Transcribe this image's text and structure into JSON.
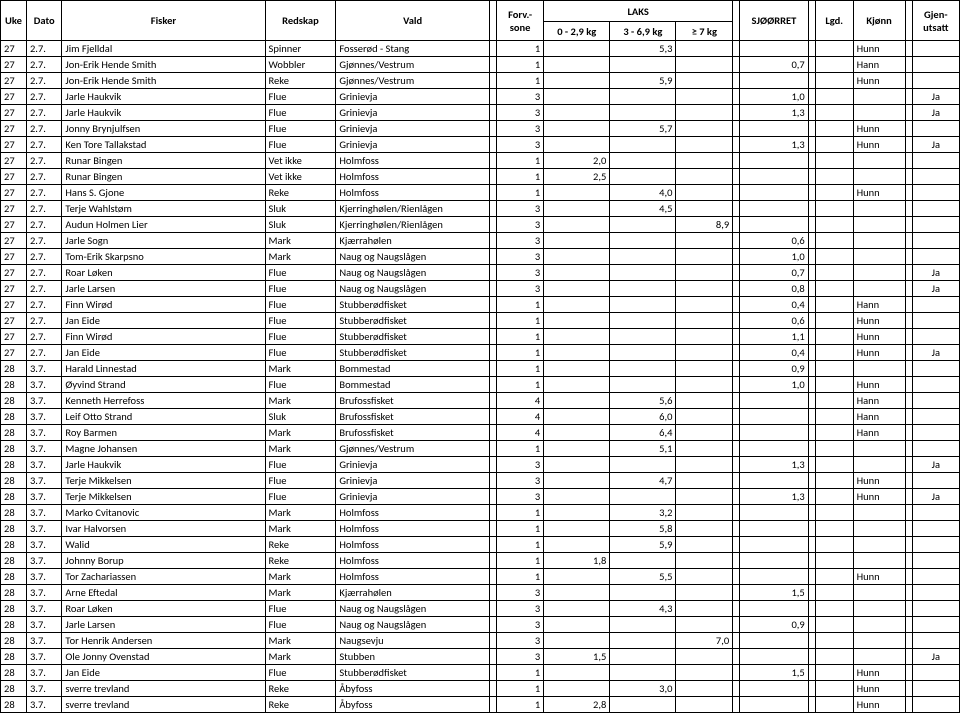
{
  "headers": {
    "uke": "Uke",
    "dato": "Dato",
    "fisker": "Fisker",
    "redskap": "Redskap",
    "vald": "Vald",
    "forv": "Forv.-\nsone",
    "forv_line1": "Forv.-",
    "forv_line2": "sone",
    "laks": "LAKS",
    "w1": "0 - 2,9 kg",
    "w2": "3 - 6,9 kg",
    "w3": "≥ 7 kg",
    "sjorret": "SJØØRRET",
    "lgd": "Lgd.",
    "kjonn": "Kjønn",
    "gjen": "Gjen-\nutsatt",
    "gjen_line1": "Gjen-",
    "gjen_line2": "utsatt"
  },
  "rows": [
    {
      "uke": "27",
      "dato": "2.7.",
      "fisker": "Jim Fjelldal",
      "redskap": "Spinner",
      "vald": "Fosserød - Stang",
      "forv": "1",
      "w1": "",
      "w2": "5,3",
      "w3": "",
      "sj": "",
      "lgd": "",
      "kjonn": "Hunn",
      "gj": ""
    },
    {
      "uke": "27",
      "dato": "2.7.",
      "fisker": "Jon-Erik Hende Smith",
      "redskap": "Wobbler",
      "vald": "Gjønnes/Vestrum",
      "forv": "1",
      "w1": "",
      "w2": "",
      "w3": "",
      "sj": "0,7",
      "lgd": "",
      "kjonn": "Hann",
      "gj": ""
    },
    {
      "uke": "27",
      "dato": "2.7.",
      "fisker": "Jon-Erik Hende Smith",
      "redskap": "Reke",
      "vald": "Gjønnes/Vestrum",
      "forv": "1",
      "w1": "",
      "w2": "5,9",
      "w3": "",
      "sj": "",
      "lgd": "",
      "kjonn": "Hunn",
      "gj": ""
    },
    {
      "uke": "27",
      "dato": "2.7.",
      "fisker": "Jarle Haukvik",
      "redskap": "Flue",
      "vald": "Grinievja",
      "forv": "3",
      "w1": "",
      "w2": "",
      "w3": "",
      "sj": "1,0",
      "lgd": "",
      "kjonn": "",
      "gj": "Ja"
    },
    {
      "uke": "27",
      "dato": "2.7.",
      "fisker": "Jarle Haukvik",
      "redskap": "Flue",
      "vald": "Grinievja",
      "forv": "3",
      "w1": "",
      "w2": "",
      "w3": "",
      "sj": "1,3",
      "lgd": "",
      "kjonn": "",
      "gj": "Ja"
    },
    {
      "uke": "27",
      "dato": "2.7.",
      "fisker": "Jonny Brynjulfsen",
      "redskap": "Flue",
      "vald": "Grinievja",
      "forv": "3",
      "w1": "",
      "w2": "5,7",
      "w3": "",
      "sj": "",
      "lgd": "",
      "kjonn": "Hunn",
      "gj": ""
    },
    {
      "uke": "27",
      "dato": "2.7.",
      "fisker": "Ken Tore Tallakstad",
      "redskap": "Flue",
      "vald": "Grinievja",
      "forv": "3",
      "w1": "",
      "w2": "",
      "w3": "",
      "sj": "1,3",
      "lgd": "",
      "kjonn": "Hunn",
      "gj": "Ja"
    },
    {
      "uke": "27",
      "dato": "2.7.",
      "fisker": "Runar Bingen",
      "redskap": "Vet ikke",
      "vald": "Holmfoss",
      "forv": "1",
      "w1": "2,0",
      "w2": "",
      "w3": "",
      "sj": "",
      "lgd": "",
      "kjonn": "",
      "gj": ""
    },
    {
      "uke": "27",
      "dato": "2.7.",
      "fisker": "Runar Bingen",
      "redskap": "Vet ikke",
      "vald": "Holmfoss",
      "forv": "1",
      "w1": "2,5",
      "w2": "",
      "w3": "",
      "sj": "",
      "lgd": "",
      "kjonn": "",
      "gj": ""
    },
    {
      "uke": "27",
      "dato": "2.7.",
      "fisker": "Hans S. Gjone",
      "redskap": "Reke",
      "vald": "Holmfoss",
      "forv": "1",
      "w1": "",
      "w2": "4,0",
      "w3": "",
      "sj": "",
      "lgd": "",
      "kjonn": "Hunn",
      "gj": ""
    },
    {
      "uke": "27",
      "dato": "2.7.",
      "fisker": "Terje Wahlstøm",
      "redskap": "Sluk",
      "vald": "Kjerringhølen/Rienlågen",
      "forv": "3",
      "w1": "",
      "w2": "4,5",
      "w3": "",
      "sj": "",
      "lgd": "",
      "kjonn": "",
      "gj": ""
    },
    {
      "uke": "27",
      "dato": "2.7.",
      "fisker": "Audun Holmen Lier",
      "redskap": "Sluk",
      "vald": "Kjerringhølen/Rienlågen",
      "forv": "3",
      "w1": "",
      "w2": "",
      "w3": "8,9",
      "sj": "",
      "lgd": "",
      "kjonn": "",
      "gj": ""
    },
    {
      "uke": "27",
      "dato": "2.7.",
      "fisker": "Jarle Sogn",
      "redskap": "Mark",
      "vald": "Kjærrahølen",
      "forv": "3",
      "w1": "",
      "w2": "",
      "w3": "",
      "sj": "0,6",
      "lgd": "",
      "kjonn": "",
      "gj": ""
    },
    {
      "uke": "27",
      "dato": "2.7.",
      "fisker": "Tom-Erik Skarpsno",
      "redskap": "Mark",
      "vald": "Naug og Naugslågen",
      "forv": "3",
      "w1": "",
      "w2": "",
      "w3": "",
      "sj": "1,0",
      "lgd": "",
      "kjonn": "",
      "gj": ""
    },
    {
      "uke": "27",
      "dato": "2.7.",
      "fisker": "Roar Løken",
      "redskap": "Flue",
      "vald": "Naug og Naugslågen",
      "forv": "3",
      "w1": "",
      "w2": "",
      "w3": "",
      "sj": "0,7",
      "lgd": "",
      "kjonn": "",
      "gj": "Ja"
    },
    {
      "uke": "27",
      "dato": "2.7.",
      "fisker": "Jarle Larsen",
      "redskap": "Flue",
      "vald": "Naug og Naugslågen",
      "forv": "3",
      "w1": "",
      "w2": "",
      "w3": "",
      "sj": "0,8",
      "lgd": "",
      "kjonn": "",
      "gj": "Ja"
    },
    {
      "uke": "27",
      "dato": "2.7.",
      "fisker": "Finn Wirød",
      "redskap": "Flue",
      "vald": "Stubberødfisket",
      "forv": "1",
      "w1": "",
      "w2": "",
      "w3": "",
      "sj": "0,4",
      "lgd": "",
      "kjonn": "Hann",
      "gj": ""
    },
    {
      "uke": "27",
      "dato": "2.7.",
      "fisker": "Jan Eide",
      "redskap": "Flue",
      "vald": "Stubberødfisket",
      "forv": "1",
      "w1": "",
      "w2": "",
      "w3": "",
      "sj": "0,6",
      "lgd": "",
      "kjonn": "Hunn",
      "gj": ""
    },
    {
      "uke": "27",
      "dato": "2.7.",
      "fisker": "Finn Wirød",
      "redskap": "Flue",
      "vald": "Stubberødfisket",
      "forv": "1",
      "w1": "",
      "w2": "",
      "w3": "",
      "sj": "1,1",
      "lgd": "",
      "kjonn": "Hunn",
      "gj": ""
    },
    {
      "uke": "27",
      "dato": "2.7.",
      "fisker": "Jan Eide",
      "redskap": "Flue",
      "vald": "Stubberødfisket",
      "forv": "1",
      "w1": "",
      "w2": "",
      "w3": "",
      "sj": "0,4",
      "lgd": "",
      "kjonn": "Hunn",
      "gj": "Ja"
    },
    {
      "uke": "28",
      "dato": "3.7.",
      "fisker": "Harald Linnestad",
      "redskap": "Mark",
      "vald": "Bommestad",
      "forv": "1",
      "w1": "",
      "w2": "",
      "w3": "",
      "sj": "0,9",
      "lgd": "",
      "kjonn": "",
      "gj": ""
    },
    {
      "uke": "28",
      "dato": "3.7.",
      "fisker": "Øyvind Strand",
      "redskap": "Flue",
      "vald": "Bommestad",
      "forv": "1",
      "w1": "",
      "w2": "",
      "w3": "",
      "sj": "1,0",
      "lgd": "",
      "kjonn": "Hunn",
      "gj": ""
    },
    {
      "uke": "28",
      "dato": "3.7.",
      "fisker": "Kenneth Herrefoss",
      "redskap": "Mark",
      "vald": "Brufossfisket",
      "forv": "4",
      "w1": "",
      "w2": "5,6",
      "w3": "",
      "sj": "",
      "lgd": "",
      "kjonn": "Hann",
      "gj": ""
    },
    {
      "uke": "28",
      "dato": "3.7.",
      "fisker": "Leif Otto Strand",
      "redskap": "Sluk",
      "vald": "Brufossfisket",
      "forv": "4",
      "w1": "",
      "w2": "6,0",
      "w3": "",
      "sj": "",
      "lgd": "",
      "kjonn": "Hann",
      "gj": ""
    },
    {
      "uke": "28",
      "dato": "3.7.",
      "fisker": "Roy Barmen",
      "redskap": "Mark",
      "vald": "Brufossfisket",
      "forv": "4",
      "w1": "",
      "w2": "6,4",
      "w3": "",
      "sj": "",
      "lgd": "",
      "kjonn": "Hann",
      "gj": ""
    },
    {
      "uke": "28",
      "dato": "3.7.",
      "fisker": "Magne Johansen",
      "redskap": "Mark",
      "vald": "Gjønnes/Vestrum",
      "forv": "1",
      "w1": "",
      "w2": "5,1",
      "w3": "",
      "sj": "",
      "lgd": "",
      "kjonn": "",
      "gj": ""
    },
    {
      "uke": "28",
      "dato": "3.7.",
      "fisker": "Jarle Haukvik",
      "redskap": "Flue",
      "vald": "Grinievja",
      "forv": "3",
      "w1": "",
      "w2": "",
      "w3": "",
      "sj": "1,3",
      "lgd": "",
      "kjonn": "",
      "gj": "Ja"
    },
    {
      "uke": "28",
      "dato": "3.7.",
      "fisker": "Terje Mikkelsen",
      "redskap": "Flue",
      "vald": "Grinievja",
      "forv": "3",
      "w1": "",
      "w2": "4,7",
      "w3": "",
      "sj": "",
      "lgd": "",
      "kjonn": "Hunn",
      "gj": ""
    },
    {
      "uke": "28",
      "dato": "3.7.",
      "fisker": "Terje Mikkelsen",
      "redskap": "Flue",
      "vald": "Grinievja",
      "forv": "3",
      "w1": "",
      "w2": "",
      "w3": "",
      "sj": "1,3",
      "lgd": "",
      "kjonn": "Hunn",
      "gj": "Ja"
    },
    {
      "uke": "28",
      "dato": "3.7.",
      "fisker": "Marko Cvitanovic",
      "redskap": "Mark",
      "vald": "Holmfoss",
      "forv": "1",
      "w1": "",
      "w2": "3,2",
      "w3": "",
      "sj": "",
      "lgd": "",
      "kjonn": "",
      "gj": ""
    },
    {
      "uke": "28",
      "dato": "3.7.",
      "fisker": "Ivar Halvorsen",
      "redskap": "Mark",
      "vald": "Holmfoss",
      "forv": "1",
      "w1": "",
      "w2": "5,8",
      "w3": "",
      "sj": "",
      "lgd": "",
      "kjonn": "",
      "gj": ""
    },
    {
      "uke": "28",
      "dato": "3.7.",
      "fisker": "Walid",
      "redskap": "Reke",
      "vald": "Holmfoss",
      "forv": "1",
      "w1": "",
      "w2": "5,9",
      "w3": "",
      "sj": "",
      "lgd": "",
      "kjonn": "",
      "gj": ""
    },
    {
      "uke": "28",
      "dato": "3.7.",
      "fisker": "Johnny Borup",
      "redskap": "Reke",
      "vald": "Holmfoss",
      "forv": "1",
      "w1": "1,8",
      "w2": "",
      "w3": "",
      "sj": "",
      "lgd": "",
      "kjonn": "",
      "gj": ""
    },
    {
      "uke": "28",
      "dato": "3.7.",
      "fisker": "Tor Zachariassen",
      "redskap": "Mark",
      "vald": "Holmfoss",
      "forv": "1",
      "w1": "",
      "w2": "5,5",
      "w3": "",
      "sj": "",
      "lgd": "",
      "kjonn": "Hunn",
      "gj": ""
    },
    {
      "uke": "28",
      "dato": "3.7.",
      "fisker": "Arne Eftedal",
      "redskap": "Mark",
      "vald": "Kjærrahølen",
      "forv": "3",
      "w1": "",
      "w2": "",
      "w3": "",
      "sj": "1,5",
      "lgd": "",
      "kjonn": "",
      "gj": ""
    },
    {
      "uke": "28",
      "dato": "3.7.",
      "fisker": "Roar Løken",
      "redskap": "Flue",
      "vald": "Naug og Naugslågen",
      "forv": "3",
      "w1": "",
      "w2": "4,3",
      "w3": "",
      "sj": "",
      "lgd": "",
      "kjonn": "",
      "gj": ""
    },
    {
      "uke": "28",
      "dato": "3.7.",
      "fisker": "Jarle Larsen",
      "redskap": "Flue",
      "vald": "Naug og Naugslågen",
      "forv": "3",
      "w1": "",
      "w2": "",
      "w3": "",
      "sj": "0,9",
      "lgd": "",
      "kjonn": "",
      "gj": ""
    },
    {
      "uke": "28",
      "dato": "3.7.",
      "fisker": "Tor Henrik Andersen",
      "redskap": "Mark",
      "vald": "Naugsevju",
      "forv": "3",
      "w1": "",
      "w2": "",
      "w3": "7,0",
      "sj": "",
      "lgd": "",
      "kjonn": "",
      "gj": ""
    },
    {
      "uke": "28",
      "dato": "3.7.",
      "fisker": "Ole Jonny Ovenstad",
      "redskap": "Mark",
      "vald": "Stubben",
      "forv": "3",
      "w1": "1,5",
      "w2": "",
      "w3": "",
      "sj": "",
      "lgd": "",
      "kjonn": "",
      "gj": "Ja"
    },
    {
      "uke": "28",
      "dato": "3.7.",
      "fisker": "Jan Eide",
      "redskap": "Flue",
      "vald": "Stubberødfisket",
      "forv": "1",
      "w1": "",
      "w2": "",
      "w3": "",
      "sj": "1,5",
      "lgd": "",
      "kjonn": "Hunn",
      "gj": ""
    },
    {
      "uke": "28",
      "dato": "3.7.",
      "fisker": "sverre trevland",
      "redskap": "Reke",
      "vald": "Åbyfoss",
      "forv": "1",
      "w1": "",
      "w2": "3,0",
      "w3": "",
      "sj": "",
      "lgd": "",
      "kjonn": "Hunn",
      "gj": ""
    },
    {
      "uke": "28",
      "dato": "3.7.",
      "fisker": "sverre trevland",
      "redskap": "Reke",
      "vald": "Åbyfoss",
      "forv": "1",
      "w1": "2,8",
      "w2": "",
      "w3": "",
      "sj": "",
      "lgd": "",
      "kjonn": "Hunn",
      "gj": ""
    }
  ]
}
